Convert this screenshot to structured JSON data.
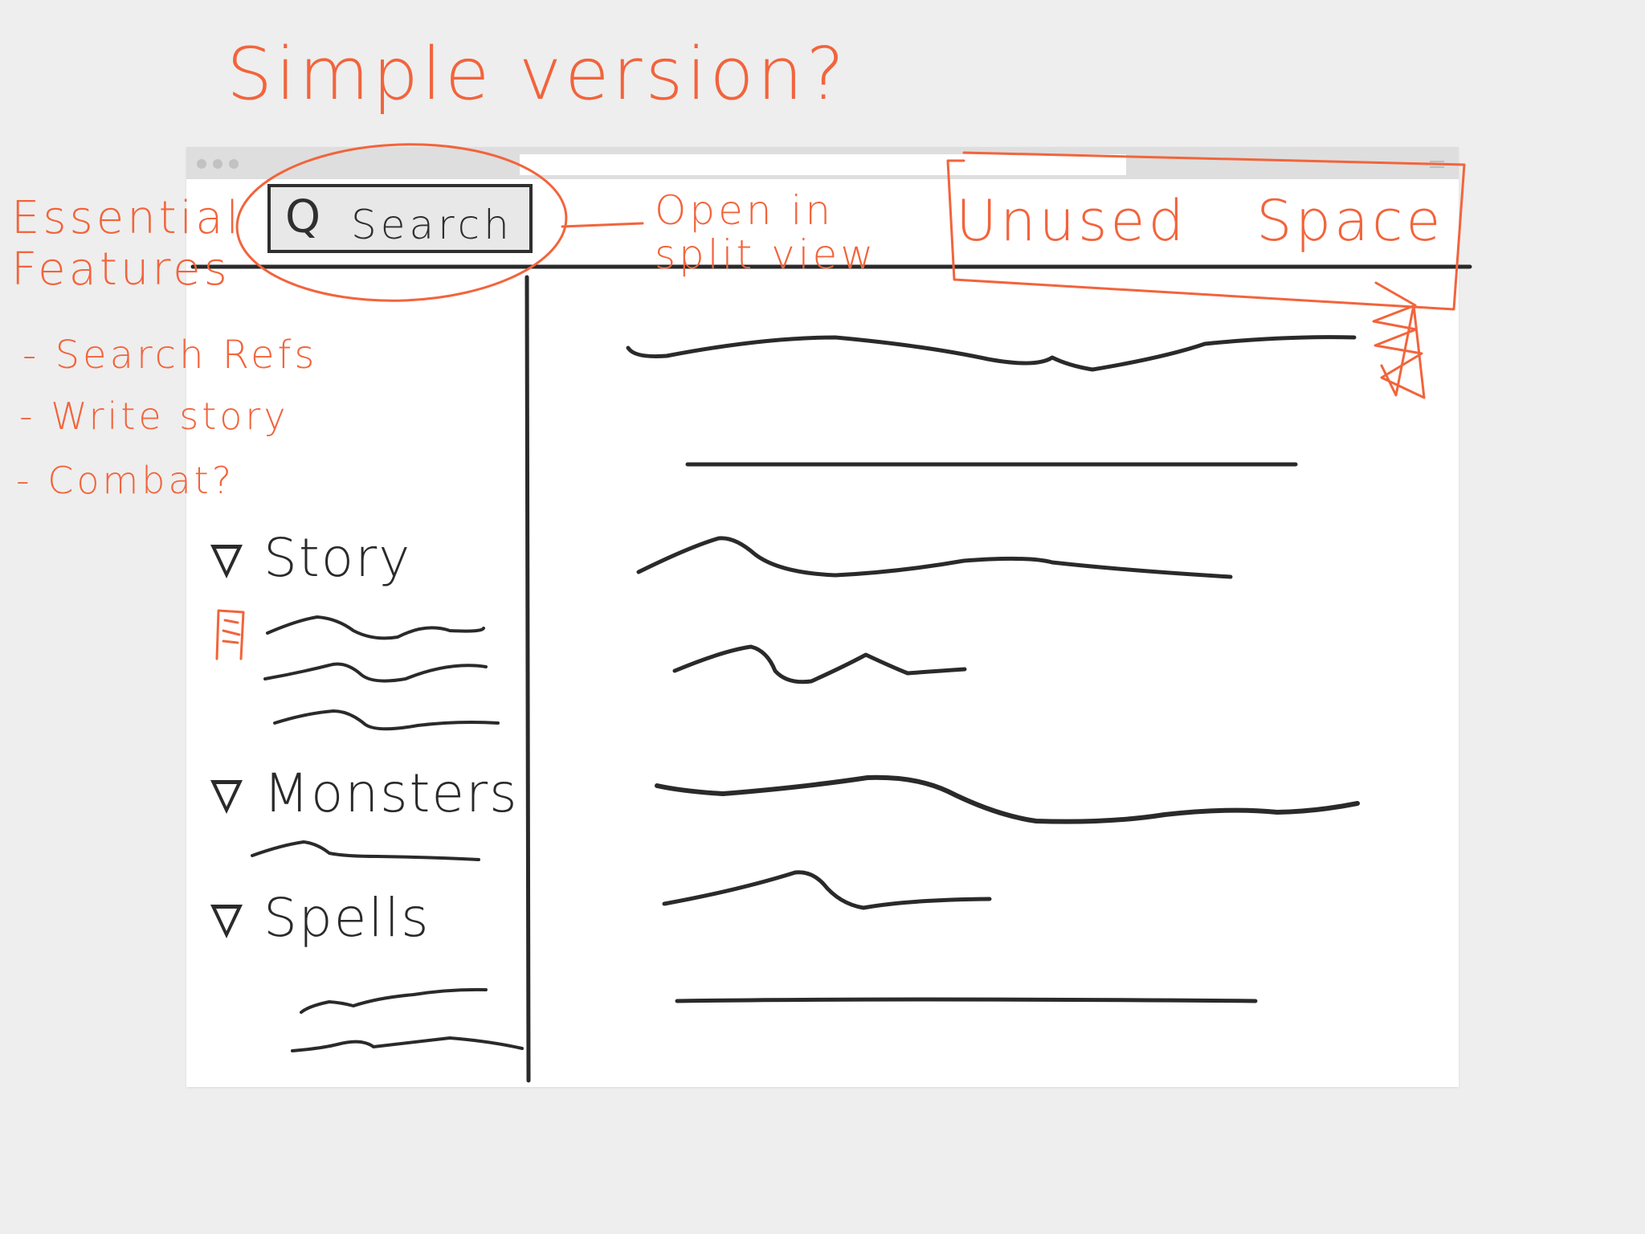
{
  "annotations": {
    "title": "Simple version?",
    "essential_heading": "Essential Features",
    "features": [
      "- Search Refs",
      "- Write story",
      "- Combat?"
    ],
    "open_split": "Open in split view",
    "unused_space": "Unused Space"
  },
  "search": {
    "icon": "search-icon",
    "label": "Search"
  },
  "sidebar": {
    "sections": [
      {
        "label": "Story"
      },
      {
        "label": "Monsters"
      },
      {
        "label": "Spells"
      }
    ]
  },
  "colors": {
    "annotation": "#f2643c",
    "ink": "#2a2a2a",
    "background": "#eeeeee",
    "window": "#ffffff",
    "titlebar": "#dedede"
  }
}
